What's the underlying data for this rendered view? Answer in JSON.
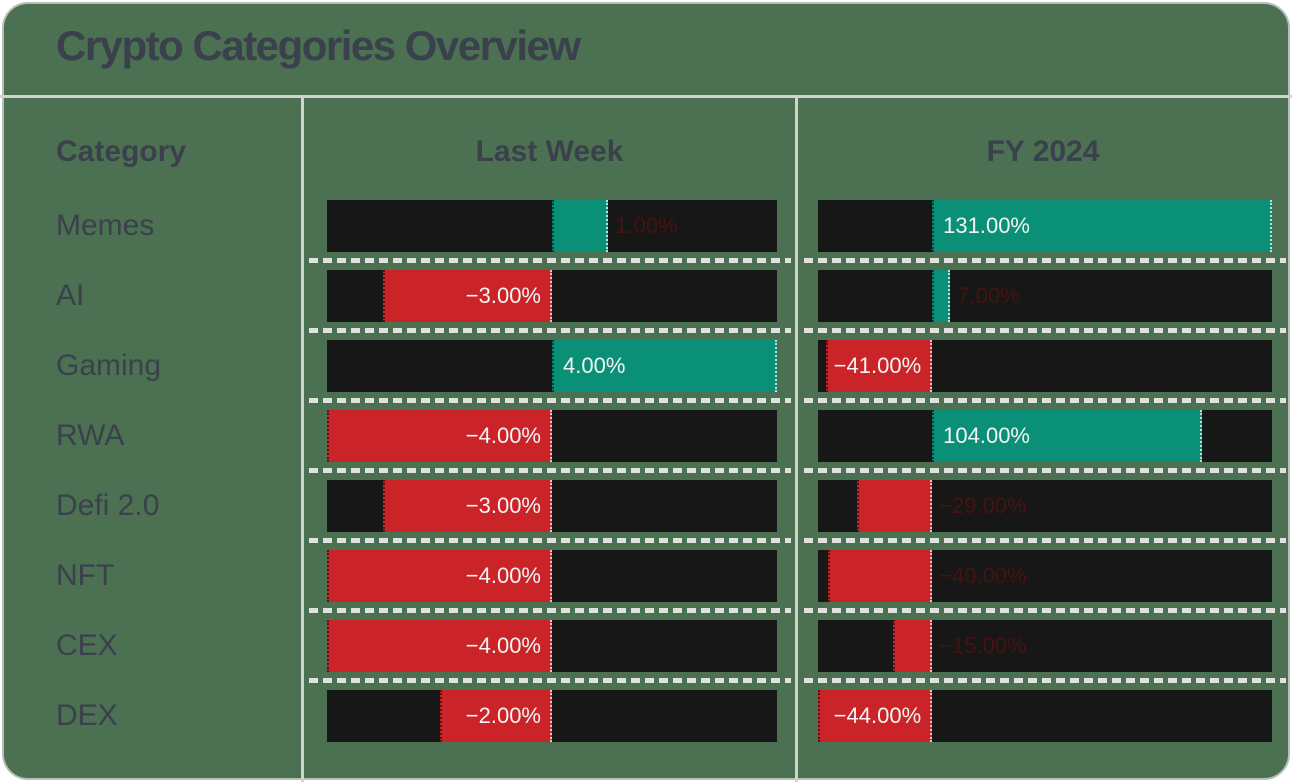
{
  "title": "Crypto Categories Overview",
  "table": {
    "category_header": "Category",
    "col1_header": "Last Week",
    "col2_header": "FY 2024"
  },
  "colors": {
    "positive": "#0a9077",
    "negative": "#cb2428",
    "bar_track": "#171717",
    "card_background": "#4b7052",
    "heading_text": "#3a414c",
    "label_on_bar": "#f4f4f4",
    "label_outside_bar": "#441410",
    "divider": "#cfd4cf",
    "row_dash": "#dfe2df"
  },
  "chart_data": {
    "type": "bar",
    "orientation": "horizontal",
    "title": "Crypto Categories Overview",
    "categories": [
      "Memes",
      "AI",
      "Gaming",
      "RWA",
      "Defi 2.0",
      "NFT",
      "CEX",
      "DEX"
    ],
    "series": [
      {
        "name": "Last Week",
        "values": [
          1,
          -3,
          4,
          -4,
          -3,
          -4,
          -4,
          -2
        ],
        "labels": [
          "1.00%",
          "−3.00%",
          "4.00%",
          "−4.00%",
          "−3.00%",
          "−4.00%",
          "−4.00%",
          "−2.00%"
        ],
        "axis_range": [
          -4,
          4
        ],
        "label_placements": [
          "outside",
          "inside",
          "inside",
          "inside",
          "inside",
          "inside",
          "inside",
          "inside"
        ]
      },
      {
        "name": "FY 2024",
        "values": [
          131,
          7,
          -41,
          104,
          -29,
          -40,
          -15,
          -44
        ],
        "labels": [
          "131.00%",
          "7.00%",
          "−41.00%",
          "104.00%",
          "−29.00%",
          "−40.00%",
          "−15.00%",
          "−44.00%"
        ],
        "axis_range": [
          -44,
          131
        ],
        "label_placements": [
          "inside",
          "outside",
          "inside",
          "inside",
          "outside",
          "outside",
          "outside",
          "inside"
        ]
      }
    ],
    "legend_position": "none",
    "grid": false
  }
}
